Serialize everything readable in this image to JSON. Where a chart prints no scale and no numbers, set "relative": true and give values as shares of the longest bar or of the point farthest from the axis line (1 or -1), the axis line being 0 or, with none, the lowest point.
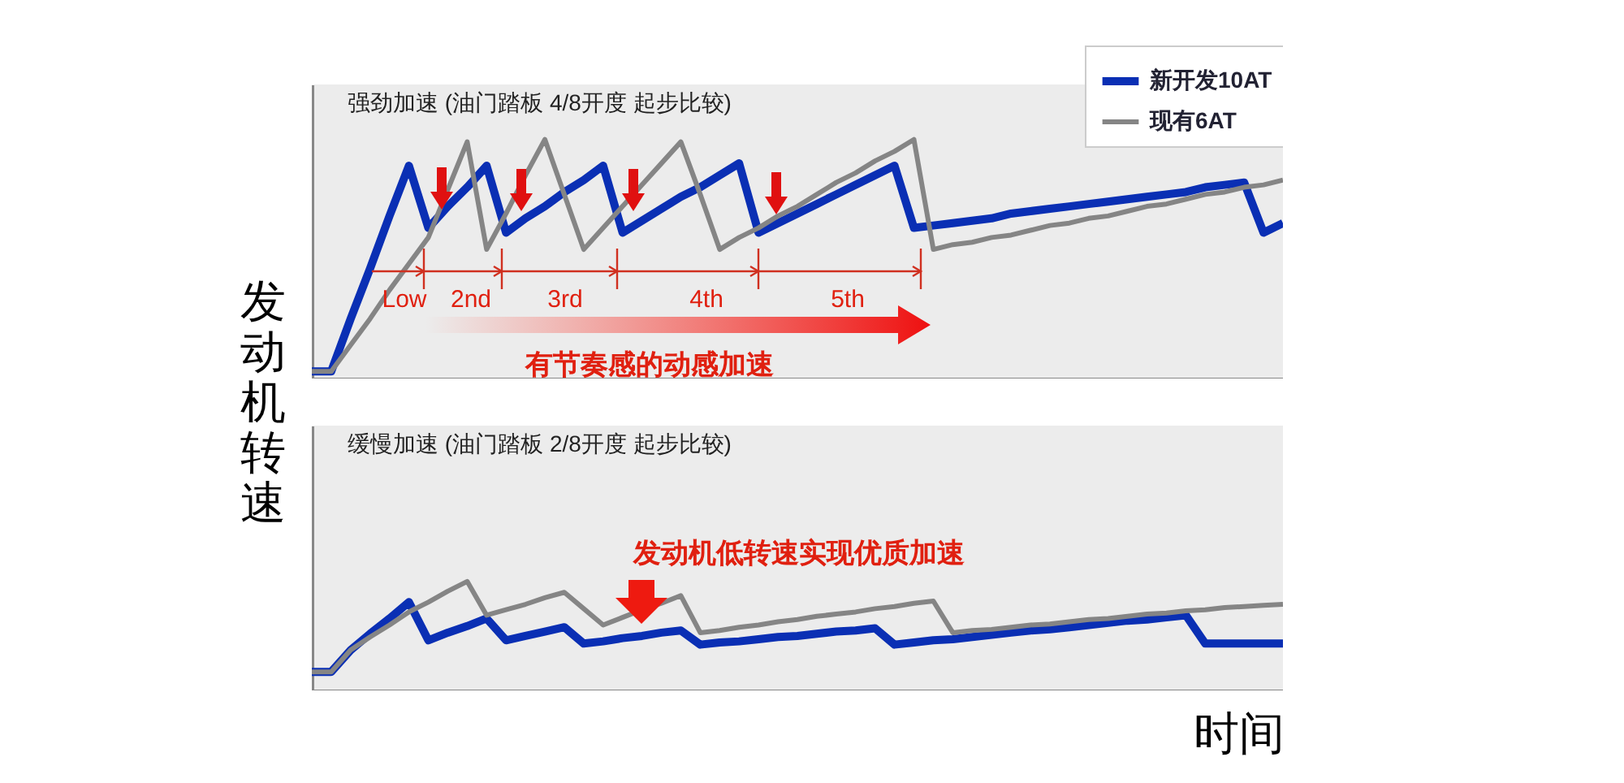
{
  "chart_data": [
    {
      "type": "line",
      "title": "强劲加速 (油门踏板 4/8开度 起步比较)",
      "ylabel": "发动机转速",
      "relative": true,
      "legend": "top right",
      "categories": [
        null,
        null,
        null,
        null,
        null,
        null,
        null,
        null,
        null,
        null,
        null,
        null,
        null,
        null,
        null,
        null,
        null,
        null,
        null,
        null,
        null,
        null,
        null,
        null,
        null,
        null,
        null,
        null,
        null,
        null,
        null,
        null,
        null,
        null,
        null,
        null,
        null,
        null,
        null,
        null,
        null,
        null,
        null,
        null,
        null,
        null,
        null,
        null,
        null,
        null,
        null
      ],
      "series": [
        {
          "name": "新开发10AT",
          "color": "#0a2fb4",
          "values": [
            0.03,
            0.03,
            0.25,
            0.46,
            0.68,
            0.89,
            0.63,
            0.72,
            0.8,
            0.89,
            0.61,
            0.67,
            0.72,
            0.78,
            0.83,
            0.89,
            0.61,
            0.66,
            0.71,
            0.76,
            0.8,
            0.85,
            0.9,
            0.61,
            0.65,
            0.69,
            0.73,
            0.77,
            0.81,
            0.85,
            0.89,
            0.63,
            0.64,
            0.65,
            0.66,
            0.67,
            0.69,
            0.7,
            0.71,
            0.72,
            0.73,
            0.74,
            0.75,
            0.76,
            0.77,
            0.78,
            0.8,
            0.81,
            0.82,
            0.61,
            0.65
          ]
        },
        {
          "name": "现有6AT",
          "color": "#858585",
          "values": [
            0.03,
            0.03,
            0.14,
            0.25,
            0.37,
            0.48,
            0.59,
            0.79,
            0.99,
            0.54,
            0.69,
            0.85,
            1.0,
            0.77,
            0.54,
            0.63,
            0.72,
            0.81,
            0.9,
            0.99,
            0.77,
            0.54,
            0.59,
            0.63,
            0.68,
            0.72,
            0.77,
            0.82,
            0.86,
            0.91,
            0.95,
            1.0,
            0.54,
            0.56,
            0.57,
            0.59,
            0.6,
            0.62,
            0.64,
            0.65,
            0.67,
            0.68,
            0.7,
            0.72,
            0.73,
            0.75,
            0.77,
            0.78,
            0.8,
            0.81,
            0.83
          ]
        }
      ],
      "annotations": [
        "Low",
        "2nd",
        "3rd",
        "4th",
        "5th",
        "有节奏感的动感加速"
      ]
    },
    {
      "type": "line",
      "title": "缓慢加速 (油门踏板 2/8开度 起步比较)",
      "xlabel": "时间",
      "relative": true,
      "categories": [
        null,
        null,
        null,
        null,
        null,
        null,
        null,
        null,
        null,
        null,
        null,
        null,
        null,
        null,
        null,
        null,
        null,
        null,
        null,
        null,
        null,
        null,
        null,
        null,
        null,
        null,
        null,
        null,
        null,
        null,
        null,
        null,
        null,
        null,
        null,
        null,
        null,
        null,
        null,
        null,
        null,
        null,
        null,
        null,
        null,
        null,
        null,
        null,
        null,
        null,
        null
      ],
      "series": [
        {
          "color": "#0a2fb4",
          "values": [
            0.17,
            0.17,
            0.37,
            0.52,
            0.66,
            0.81,
            0.46,
            0.53,
            0.59,
            0.66,
            0.46,
            0.5,
            0.54,
            0.58,
            0.43,
            0.45,
            0.48,
            0.5,
            0.53,
            0.55,
            0.42,
            0.44,
            0.45,
            0.47,
            0.49,
            0.5,
            0.52,
            0.54,
            0.55,
            0.57,
            0.42,
            0.44,
            0.46,
            0.47,
            0.49,
            0.51,
            0.53,
            0.55,
            0.56,
            0.58,
            0.6,
            0.62,
            0.64,
            0.65,
            0.67,
            0.69,
            0.43,
            0.43,
            0.43,
            0.43,
            0.43
          ]
        },
        {
          "color": "#858585",
          "values": [
            0.17,
            0.17,
            0.37,
            0.49,
            0.6,
            0.72,
            0.81,
            0.91,
            1.0,
            0.69,
            0.74,
            0.79,
            0.85,
            0.9,
            0.75,
            0.6,
            0.67,
            0.74,
            0.8,
            0.87,
            0.53,
            0.55,
            0.58,
            0.6,
            0.63,
            0.65,
            0.68,
            0.7,
            0.72,
            0.75,
            0.77,
            0.8,
            0.82,
            0.53,
            0.55,
            0.56,
            0.58,
            0.6,
            0.61,
            0.63,
            0.65,
            0.66,
            0.68,
            0.7,
            0.71,
            0.73,
            0.74,
            0.76,
            0.77,
            0.78,
            0.79
          ]
        }
      ],
      "annotations": [
        "发动机低转速实现优质加速"
      ]
    }
  ]
}
